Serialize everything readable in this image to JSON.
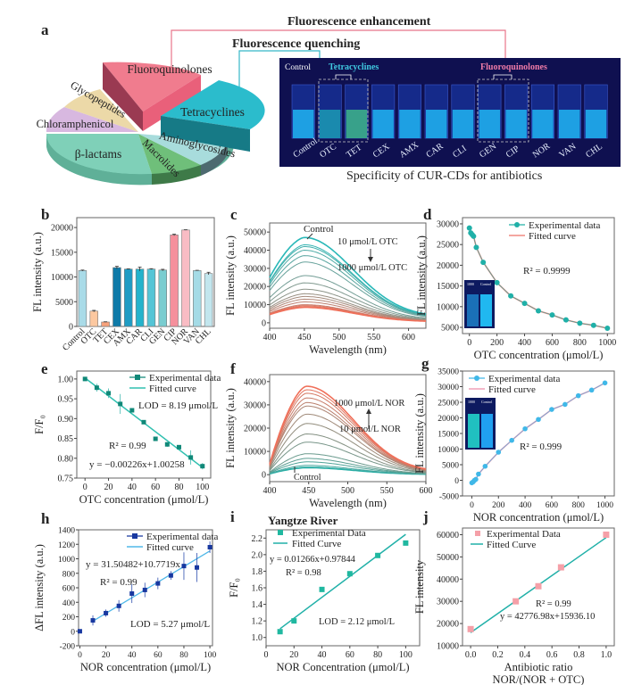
{
  "panel_a": {
    "label": "a",
    "enhancement_title": "Fluorescence enhancement",
    "quenching_title": "Fluorescence quenching",
    "pie_slices": [
      {
        "name": "Fluoroquinolones",
        "color": "#e8647a"
      },
      {
        "name": "Tetracyclines",
        "color": "#2bb9c8"
      },
      {
        "name": "Aminoglycosides",
        "color": "#9fd8dc"
      },
      {
        "name": "Macrolides",
        "color": "#6fbf7a"
      },
      {
        "name": "β-lactams",
        "color": "#7fd0b8"
      },
      {
        "name": "Chloramphenicol",
        "color": "#d8b8e0"
      },
      {
        "name": "Glycopeptides",
        "color": "#ecd9a8"
      }
    ],
    "photo": {
      "control_label": "Control",
      "tetracyclines_label": "Tetracyclines",
      "fluoroquinolones_label": "Fluoroquinolones",
      "vials": [
        "Control",
        "OTC",
        "TET",
        "CEX",
        "AMX",
        "CAR",
        "CLI",
        "GEN",
        "CIP",
        "NOR",
        "VAN",
        "CHL"
      ]
    },
    "caption": "Specificity of CUR-CDs for antibiotics"
  },
  "chart_data": [
    {
      "id": "b",
      "type": "bar",
      "title": "",
      "xlabel": "",
      "ylabel": "FL intensity (a.u.)",
      "ylim": [
        0,
        22000
      ],
      "yticks": [
        0,
        5000,
        10000,
        15000,
        20000
      ],
      "categories": [
        "Control",
        "OTC",
        "TET",
        "CEX",
        "AMX",
        "CAR",
        "CLI",
        "GEN",
        "CIP",
        "NOR",
        "VAN",
        "CHL"
      ],
      "values": [
        11300,
        3100,
        900,
        11900,
        11600,
        11600,
        11600,
        11400,
        18500,
        19500,
        11300,
        10700
      ],
      "errors": [
        100,
        150,
        50,
        250,
        50,
        400,
        80,
        150,
        150,
        50,
        50,
        250
      ],
      "colors": [
        "#a9dbe8",
        "#fcc8a0",
        "#f7a27c",
        "#0e7aa8",
        "#1f9cc4",
        "#24b3cc",
        "#55c5d6",
        "#79cdd0",
        "#f5909c",
        "#f9bcc4",
        "#a4dbe6",
        "#c2e6ee"
      ]
    },
    {
      "id": "c",
      "type": "line",
      "xlabel": "Wavelength (nm)",
      "ylabel": "FL intensity (a.u.)",
      "xlim": [
        400,
        625
      ],
      "ylim": [
        -3000,
        55000
      ],
      "xticks": [
        400,
        450,
        500,
        550,
        600
      ],
      "yticks": [
        0,
        10000,
        20000,
        30000,
        40000,
        50000
      ],
      "annotations": [
        "Control",
        "10 μmol/L OTC",
        "1000 μmol/L OTC"
      ],
      "peak_x": 450,
      "series_peaks": [
        47000,
        43000,
        42000,
        40000,
        37000,
        33500,
        26000,
        22000,
        18500,
        16000,
        14500,
        13000,
        11500,
        10000,
        9500,
        9000,
        8500
      ],
      "start_ratio": 0.53,
      "end_ratio": 0.065,
      "color_start": "#28b8b8",
      "color_end": "#f0705a"
    },
    {
      "id": "d",
      "type": "scatter",
      "xlabel": "OTC concentration (μmol/L)",
      "ylabel": "FL intensity (a.u.)",
      "xlim": [
        -50,
        1050
      ],
      "ylim": [
        3500,
        31500
      ],
      "xticks": [
        0,
        200,
        400,
        600,
        800,
        1000
      ],
      "yticks": [
        5000,
        10000,
        15000,
        20000,
        25000,
        30000
      ],
      "legend": [
        "Experimental data",
        "Fitted curve"
      ],
      "annotation": "R² = 0.9999",
      "inset_labels": [
        "1000",
        "Control"
      ],
      "x": [
        0,
        10,
        20,
        30,
        50,
        100,
        200,
        300,
        400,
        500,
        600,
        700,
        800,
        900,
        1000
      ],
      "y": [
        29000,
        27800,
        27400,
        27000,
        24300,
        20700,
        15800,
        12600,
        10800,
        9000,
        8000,
        6800,
        6000,
        5500,
        4800
      ]
    },
    {
      "id": "e",
      "type": "scatter",
      "xlabel": "OTC concentration (μmol/L)",
      "ylabel": "F/F₀",
      "xlim": [
        -7,
        107
      ],
      "ylim": [
        0.75,
        1.02
      ],
      "xticks": [
        0,
        20,
        40,
        60,
        80,
        100
      ],
      "yticks": [
        0.75,
        0.8,
        0.85,
        0.9,
        0.95,
        1.0
      ],
      "legend": [
        "Experimental data",
        "Fitted curve"
      ],
      "annotations": [
        "LOD = 8.19 μmol/L",
        "R² = 0.99",
        "y = −0.00226x+1.00258"
      ],
      "fit": {
        "slope": -0.00226,
        "intercept": 1.00258
      },
      "x": [
        0,
        10,
        20,
        30,
        40,
        50,
        60,
        70,
        80,
        90,
        100
      ],
      "y": [
        1.0,
        0.978,
        0.964,
        0.937,
        0.921,
        0.891,
        0.849,
        0.835,
        0.828,
        0.802,
        0.78
      ],
      "errors": [
        0,
        0.01,
        0.012,
        0.025,
        0.004,
        0.005,
        0.003,
        0.006,
        0.005,
        0.018,
        0.008
      ]
    },
    {
      "id": "f",
      "type": "line",
      "xlabel": "Wavelength (nm)",
      "ylabel": "FL intensity (a.u.)",
      "xlim": [
        400,
        600
      ],
      "ylim": [
        -3000,
        43000
      ],
      "xticks": [
        400,
        450,
        500,
        550,
        600
      ],
      "yticks": [
        0,
        10000,
        20000,
        30000,
        40000
      ],
      "annotations": [
        "1000 μmol/L NOR",
        "10 μmol/L NOR",
        "Control"
      ],
      "peak_x": 447,
      "series_peaks": [
        3000,
        3300,
        4000,
        5500,
        7000,
        9000,
        14000,
        17500,
        22000,
        26000,
        29500,
        31000,
        33000,
        35000,
        36500,
        38000
      ],
      "start_ratio": 0.12,
      "end_ratio": 0.025,
      "color_start": "#28b0a8",
      "color_end": "#f0705a"
    },
    {
      "id": "g",
      "type": "scatter",
      "xlabel": "NOR concentration (μmol/L)",
      "ylabel": "FL intensity (a.u.)",
      "xlim": [
        -70,
        1070
      ],
      "ylim": [
        -5000,
        35000
      ],
      "xticks": [
        0,
        200,
        400,
        600,
        800,
        1000
      ],
      "yticks": [
        -5000,
        0,
        5000,
        10000,
        15000,
        20000,
        25000,
        30000,
        35000
      ],
      "legend": [
        "Experimental data",
        "Fitted curve"
      ],
      "annotation": "R² = 0.999",
      "inset_labels": [
        "1000",
        "Control"
      ],
      "x": [
        0,
        10,
        20,
        30,
        50,
        100,
        200,
        300,
        400,
        500,
        600,
        700,
        800,
        900,
        1000
      ],
      "y": [
        -800,
        -500,
        0,
        300,
        2000,
        4500,
        9000,
        12800,
        16500,
        19500,
        22700,
        24300,
        27100,
        28900,
        31200
      ]
    },
    {
      "id": "h",
      "type": "scatter",
      "xlabel": "NOR concentration (μmol/L)",
      "ylabel": "ΔFL intensity (a.u.)",
      "xlim": [
        -1,
        102
      ],
      "ylim": [
        -200,
        1400
      ],
      "xticks": [
        0,
        20,
        40,
        60,
        80,
        100
      ],
      "yticks": [
        -200,
        0,
        200,
        400,
        600,
        800,
        1000,
        1200,
        1400
      ],
      "legend": [
        "Experimental data",
        "Fitted curve"
      ],
      "annotations": [
        "y = 31.50482+10.7719x",
        "R² = 0.99",
        "LOD = 5.27 μmol/L"
      ],
      "fit": {
        "slope": 10.7719,
        "intercept": 31.50482,
        "x_from": 10,
        "x_to": 100
      },
      "x": [
        0,
        10,
        20,
        30,
        40,
        50,
        60,
        70,
        80,
        90,
        100
      ],
      "y": [
        0,
        150,
        250,
        350,
        520,
        570,
        660,
        770,
        900,
        880,
        1160
      ],
      "errors": [
        0,
        70,
        50,
        80,
        130,
        100,
        80,
        60,
        190,
        200,
        80
      ]
    },
    {
      "id": "i",
      "type": "scatter",
      "title": "Yangtze River",
      "xlabel": "NOR Concentration (μmol/L)",
      "ylabel": "F/F₀",
      "xlim": [
        0,
        110
      ],
      "ylim": [
        0.9,
        2.3
      ],
      "xticks": [
        0,
        20,
        40,
        60,
        80,
        100
      ],
      "yticks": [
        1.0,
        1.2,
        1.4,
        1.6,
        1.8,
        2.0,
        2.2
      ],
      "legend": [
        "Experimental Data",
        "Fitted Curve"
      ],
      "annotations": [
        "y = 0.01266x+0.97844",
        "R² = 0.98",
        "LOD = 2.12 μmol/L"
      ],
      "fit": {
        "slope": 0.01266,
        "intercept": 0.97844,
        "x_from": 10,
        "x_to": 100
      },
      "x": [
        10,
        20,
        40,
        60,
        80,
        100
      ],
      "y": [
        1.07,
        1.2,
        1.58,
        1.77,
        1.99,
        2.14
      ]
    },
    {
      "id": "j",
      "type": "scatter",
      "xlabel": "Antibiotic ratio",
      "xlabel2": "NOR/(NOR + OTC)",
      "ylabel": "FL intensity",
      "xlim": [
        -0.06,
        1.06
      ],
      "ylim": [
        10000,
        63000
      ],
      "xticks": [
        0.0,
        0.2,
        0.4,
        0.6,
        0.8,
        1.0
      ],
      "yticks": [
        10000,
        20000,
        30000,
        40000,
        50000,
        60000
      ],
      "legend": [
        "Experimental Data",
        "Fitted Curve"
      ],
      "annotations": [
        "R² = 0.99",
        "y = 42776.98x+15936.10"
      ],
      "fit": {
        "slope": 42776.98,
        "intercept": 15936.1,
        "x_from": 0,
        "x_to": 1
      },
      "x": [
        0.0,
        0.333,
        0.5,
        0.667,
        1.0
      ],
      "y": [
        17500,
        30000,
        36800,
        45300,
        60000
      ]
    }
  ]
}
